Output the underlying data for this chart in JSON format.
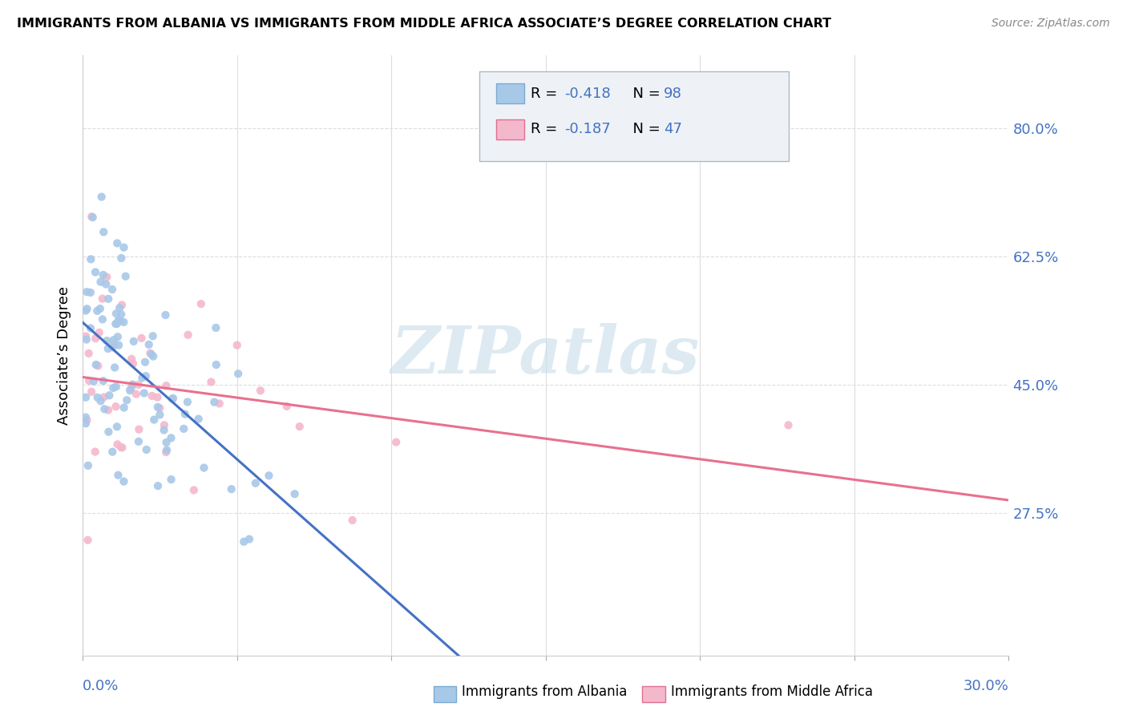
{
  "title": "IMMIGRANTS FROM ALBANIA VS IMMIGRANTS FROM MIDDLE AFRICA ASSOCIATE’S DEGREE CORRELATION CHART",
  "source": "Source: ZipAtlas.com",
  "ylabel": "Associate’s Degree",
  "xlim": [
    0.0,
    0.3
  ],
  "ylim": [
    0.08,
    0.9
  ],
  "y_ticks": [
    0.275,
    0.45,
    0.625,
    0.8
  ],
  "y_tick_labels": [
    "27.5%",
    "45.0%",
    "62.5%",
    "80.0%"
  ],
  "color_albania": "#a8c8e8",
  "color_albania_dark": "#4472c4",
  "color_midafrica": "#f4b8cc",
  "color_midafrica_dark": "#e87090",
  "R_albania": -0.418,
  "N_albania": 98,
  "R_midafrica": -0.187,
  "N_midafrica": 47,
  "watermark": "ZIPatlas",
  "tick_color": "#4472c4",
  "grid_color": "#dddddd",
  "legend1_label": "Immigrants from Albania",
  "legend2_label": "Immigrants from Middle Africa"
}
